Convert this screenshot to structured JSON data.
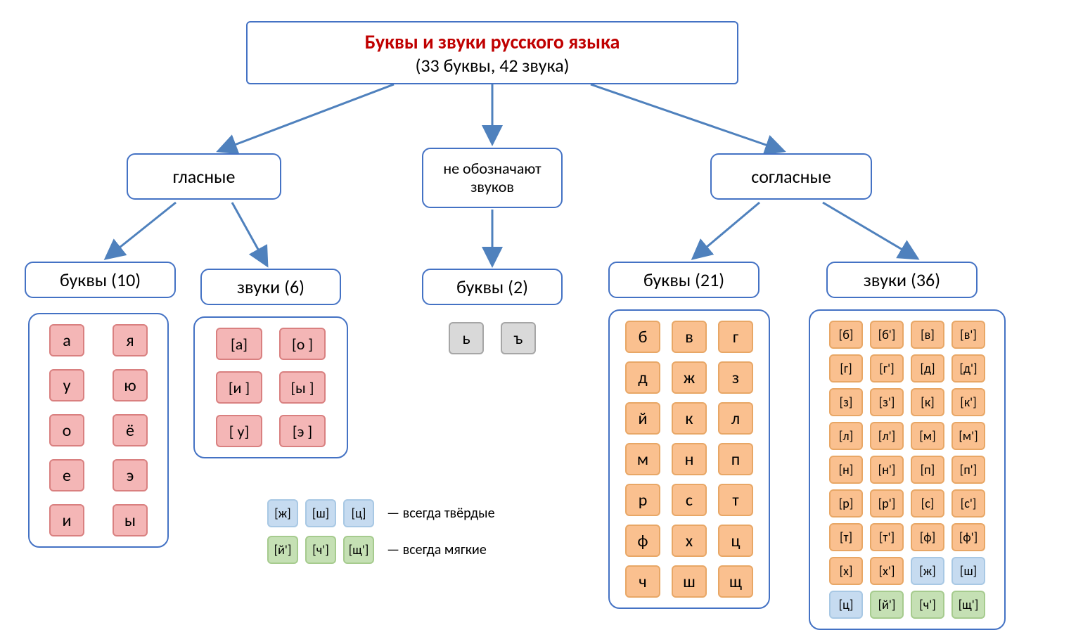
{
  "colors": {
    "border": "#4472c4",
    "title": "#c00000",
    "arrow": "#4f81bd",
    "pink_fill": "#f4b6b6",
    "pink_border": "#d98080",
    "gray_fill": "#d9d9d9",
    "gray_border": "#a6a6a6",
    "orange_fill": "#fac08f",
    "orange_border": "#e8a766",
    "blue_fill": "#c6dbf0",
    "blue_border": "#a8c8e4",
    "green_fill": "#c5e0b4",
    "green_border": "#a6cb8e"
  },
  "root": {
    "title": "Буквы и звуки русского языка",
    "subtitle": "(33 буквы, 42 звука)"
  },
  "branches": {
    "vowels": "гласные",
    "nosound": "не обозначают звуков",
    "consonants": "согласные"
  },
  "headings": {
    "vowel_letters": "буквы (10)",
    "vowel_sounds": "звуки (6)",
    "nosound_letters": "буквы (2)",
    "consonant_letters": "буквы (21)",
    "consonant_sounds": "звуки (36)"
  },
  "vowel_letters": [
    "а",
    "я",
    "у",
    "ю",
    "о",
    "ё",
    "е",
    "э",
    "и",
    "ы"
  ],
  "vowel_sounds": [
    "[а]",
    "[о ]",
    "[и ]",
    "[ы ]",
    "[ у]",
    "[э ]"
  ],
  "nosound_letters": [
    "ь",
    "ъ"
  ],
  "consonant_letters": [
    "б",
    "в",
    "г",
    "д",
    "ж",
    "з",
    "й",
    "к",
    "л",
    "м",
    "н",
    "п",
    "р",
    "с",
    "т",
    "ф",
    "х",
    "ц",
    "ч",
    "ш",
    "щ"
  ],
  "consonant_sounds": [
    {
      "t": "[б]",
      "c": "o"
    },
    {
      "t": "[б']",
      "c": "o"
    },
    {
      "t": "[в]",
      "c": "o"
    },
    {
      "t": "[в']",
      "c": "o"
    },
    {
      "t": "[г]",
      "c": "o"
    },
    {
      "t": "[г']",
      "c": "o"
    },
    {
      "t": "[д]",
      "c": "o"
    },
    {
      "t": "[д']",
      "c": "o"
    },
    {
      "t": "[з]",
      "c": "o"
    },
    {
      "t": "[з']",
      "c": "o"
    },
    {
      "t": "[к]",
      "c": "o"
    },
    {
      "t": "[к']",
      "c": "o"
    },
    {
      "t": "[л]",
      "c": "o"
    },
    {
      "t": "[л']",
      "c": "o"
    },
    {
      "t": "[м]",
      "c": "o"
    },
    {
      "t": "[м']",
      "c": "o"
    },
    {
      "t": "[н]",
      "c": "o"
    },
    {
      "t": "[н']",
      "c": "o"
    },
    {
      "t": "[п]",
      "c": "o"
    },
    {
      "t": "[п']",
      "c": "o"
    },
    {
      "t": "[р]",
      "c": "o"
    },
    {
      "t": "[р']",
      "c": "o"
    },
    {
      "t": "[с]",
      "c": "o"
    },
    {
      "t": "[с']",
      "c": "o"
    },
    {
      "t": "[т]",
      "c": "o"
    },
    {
      "t": "[т']",
      "c": "o"
    },
    {
      "t": "[ф]",
      "c": "o"
    },
    {
      "t": "[ф']",
      "c": "o"
    },
    {
      "t": "[х]",
      "c": "o"
    },
    {
      "t": "[х']",
      "c": "o"
    },
    {
      "t": "[ж]",
      "c": "b"
    },
    {
      "t": "[ш]",
      "c": "b"
    },
    {
      "t": "[ц]",
      "c": "b"
    },
    {
      "t": "[й']",
      "c": "g"
    },
    {
      "t": "[ч']",
      "c": "g"
    },
    {
      "t": "[щ']",
      "c": "g"
    }
  ],
  "legend": {
    "hard": {
      "tiles": [
        "[ж]",
        "[ш]",
        "[ц]"
      ],
      "text": "— всегда твёрдые"
    },
    "soft": {
      "tiles": [
        "[й']",
        "[ч']",
        "[щ']"
      ],
      "text": "— всегда мягкие"
    }
  }
}
